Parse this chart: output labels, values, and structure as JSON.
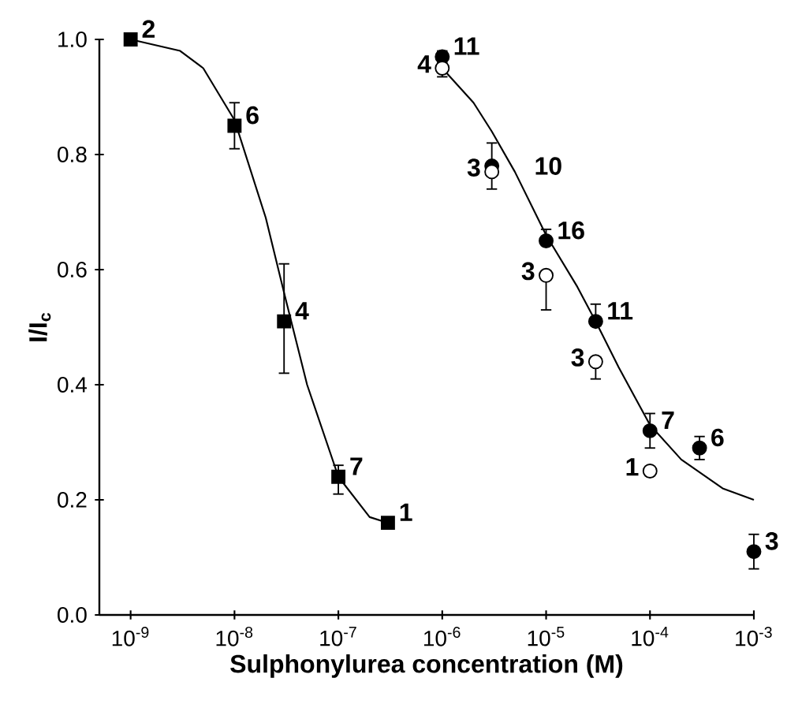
{
  "chart_data": {
    "type": "scatter",
    "xlabel": "Sulphonylurea concentration (M)",
    "ylabel": "I/I$_{c}$",
    "log": "x",
    "xlim": [
      5e-10,
      0.001
    ],
    "ylim": [
      0,
      1
    ],
    "xticks": [
      {
        "value": 1e-09,
        "label": "10$^{-9}$"
      },
      {
        "value": 1e-08,
        "label": "10$^{-8}$"
      },
      {
        "value": 1e-07,
        "label": "10$^{-7}$"
      },
      {
        "value": 1e-06,
        "label": "10$^{-6}$"
      },
      {
        "value": 1e-05,
        "label": "10$^{-5}$"
      },
      {
        "value": 0.0001,
        "label": "10$^{-4}$"
      },
      {
        "value": 0.001,
        "label": "10$^{-3}$"
      }
    ],
    "yticks": [
      {
        "value": 0,
        "label": "0.0"
      },
      {
        "value": 0.2,
        "label": "0.2"
      },
      {
        "value": 0.4,
        "label": "0.4"
      },
      {
        "value": 0.6,
        "label": "0.6"
      },
      {
        "value": 0.8,
        "label": "0.8"
      },
      {
        "value": 1,
        "label": "1.0"
      }
    ],
    "series": [
      {
        "type": "line",
        "color": "#000000",
        "marker": "none",
        "x": [
          1e-09,
          3e-09,
          5e-09,
          1e-08,
          2e-08,
          3e-08,
          5e-08,
          1e-07,
          2e-07,
          3e-07
        ],
        "values": [
          1.0,
          0.98,
          0.95,
          0.86,
          0.69,
          0.56,
          0.4,
          0.24,
          0.17,
          0.16
        ]
      },
      {
        "type": "line",
        "color": "#000000",
        "marker": "none",
        "x": [
          1e-06,
          2e-06,
          3e-06,
          5e-06,
          1e-05,
          2e-05,
          3e-05,
          5e-05,
          0.0001,
          0.0002,
          0.0005,
          0.001
        ],
        "values": [
          0.95,
          0.89,
          0.84,
          0.77,
          0.66,
          0.57,
          0.51,
          0.43,
          0.33,
          0.27,
          0.22,
          0.2
        ]
      },
      {
        "color": "#000000",
        "marker": "square",
        "x": [
          1e-09,
          1e-08,
          3e-08,
          1e-07,
          3e-07
        ],
        "values": [
          1.0,
          0.85,
          0.51,
          0.24,
          0.16
        ],
        "errors": [
          null,
          [
            0.81,
            0.89
          ],
          [
            0.42,
            0.61
          ],
          [
            0.21,
            0.26
          ],
          null
        ]
      },
      {
        "color": "#000000",
        "marker": "circle",
        "x": [
          1e-06,
          3e-06,
          1e-05,
          3e-05,
          0.0001,
          0.0003,
          0.001
        ],
        "values": [
          0.97,
          0.78,
          0.65,
          0.51,
          0.32,
          0.29,
          0.11
        ],
        "errors": [
          [
            0.96,
            0.98
          ],
          null,
          [
            0.65,
            0.67
          ],
          [
            0.51,
            0.54
          ],
          [
            0.29,
            0.35
          ],
          [
            0.27,
            0.31
          ],
          [
            0.08,
            0.14
          ]
        ]
      },
      {
        "color": "#ffffff",
        "marker": "circle",
        "x": [
          1e-06,
          3e-06,
          1e-05,
          3e-05,
          0.0001
        ],
        "values": [
          0.95,
          0.77,
          0.59,
          0.44,
          0.25
        ],
        "errors": [
          [
            0.935,
            0.95
          ],
          [
            0.74,
            0.82
          ],
          [
            0.53,
            0.59
          ],
          [
            0.41,
            0.44
          ],
          null
        ]
      }
    ],
    "annotations": [
      {
        "text": "2",
        "x": 1e-09,
        "y": 1.0
      },
      {
        "text": "6",
        "x": 1e-08,
        "y": 0.85
      },
      {
        "text": "4",
        "x": 3e-08,
        "y": 0.51
      },
      {
        "text": "7",
        "x": 1e-07,
        "y": 0.24
      },
      {
        "text": "1",
        "x": 3e-07,
        "y": 0.16
      },
      {
        "text": "11",
        "x": 1e-06,
        "y": 0.97
      },
      {
        "text": "4",
        "x": 1e-06,
        "y": 0.95
      },
      {
        "text": "3",
        "x": 3e-06,
        "y": 0.77
      },
      {
        "text": "10",
        "x": 3e-06,
        "y": 0.78
      },
      {
        "text": "16",
        "x": 1e-05,
        "y": 0.65
      },
      {
        "text": "3",
        "x": 1e-05,
        "y": 0.59
      },
      {
        "text": "11",
        "x": 3e-05,
        "y": 0.51
      },
      {
        "text": "3",
        "x": 3e-05,
        "y": 0.44
      },
      {
        "text": "7",
        "x": 0.0001,
        "y": 0.32
      },
      {
        "text": "1",
        "x": 0.0001,
        "y": 0.25
      },
      {
        "text": "6",
        "x": 0.0003,
        "y": 0.29
      },
      {
        "text": "3",
        "x": 0.001,
        "y": 0.11
      }
    ]
  }
}
